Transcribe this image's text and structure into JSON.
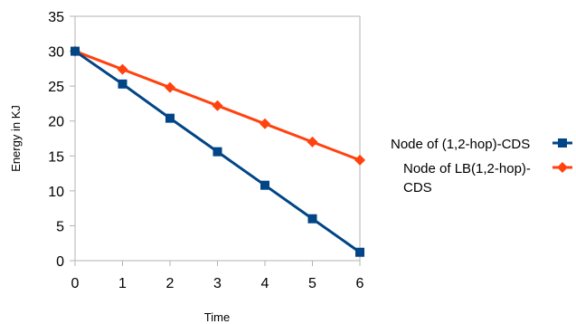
{
  "chart_data": {
    "type": "line",
    "title": "",
    "xlabel": "Time",
    "ylabel": "Energy in KJ",
    "x": [
      0,
      1,
      2,
      3,
      4,
      5,
      6
    ],
    "xlim": [
      0,
      6
    ],
    "ylim": [
      0,
      35
    ],
    "yticks": [
      0,
      5,
      10,
      15,
      20,
      25,
      30,
      35
    ],
    "grid": "none",
    "legend_position": "right",
    "series": [
      {
        "name": "Node of (1,2-hop)-CDS",
        "values": [
          30,
          25.3,
          20.4,
          15.6,
          10.8,
          6.0,
          1.2
        ],
        "color": "#004586",
        "marker": "square"
      },
      {
        "name": "Node of LB(1,2-hop)-CDS",
        "name_lines": [
          "Node of LB(1,2-hop)-",
          "CDS"
        ],
        "values": [
          30,
          27.4,
          24.8,
          22.2,
          19.6,
          17.0,
          14.4
        ],
        "color": "#ff420e",
        "marker": "diamond"
      }
    ]
  }
}
